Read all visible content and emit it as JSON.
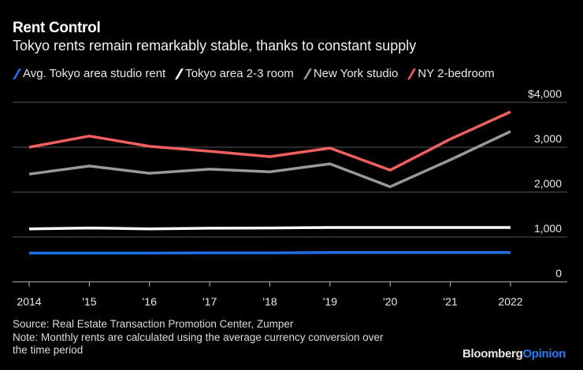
{
  "chart_data": {
    "type": "line",
    "title": "Rent Control",
    "subtitle": "Tokyo rents remain remarkably stable, thanks to constant supply",
    "xlabel": "",
    "ylabel": "",
    "x": [
      2014,
      2015,
      2016,
      2017,
      2018,
      2019,
      2020,
      2021,
      2022
    ],
    "x_tick_labels": [
      "2014",
      "'15",
      "'16",
      "'17",
      "'18",
      "'19",
      "'20",
      "'21",
      "2022"
    ],
    "ylim": [
      0,
      4000
    ],
    "y_ticks": [
      0,
      1000,
      2000,
      3000,
      4000
    ],
    "y_tick_labels": [
      "0",
      "1,000",
      "2,000",
      "3,000",
      "$4,000"
    ],
    "y_axis_position": "right",
    "grid": true,
    "legend_position": "top-left",
    "series": [
      {
        "name": "Avg. Tokyo area studio rent",
        "color": "#1f6fe5",
        "values": [
          640,
          640,
          640,
          645,
          645,
          655,
          655,
          655,
          655
        ]
      },
      {
        "name": "Tokyo area 2-3 room",
        "color": "#ffffff",
        "values": [
          1180,
          1200,
          1180,
          1195,
          1200,
          1210,
          1210,
          1210,
          1210
        ]
      },
      {
        "name": "New York studio",
        "color": "#999999",
        "values": [
          2400,
          2580,
          2420,
          2510,
          2450,
          2630,
          2120,
          2720,
          3350
        ]
      },
      {
        "name": "NY 2-bedroom",
        "color": "#f25f5f",
        "values": [
          3000,
          3250,
          3020,
          2910,
          2790,
          2980,
          2490,
          3180,
          3790
        ]
      }
    ]
  },
  "footer": {
    "source": "Source: Real Estate Transaction Promotion Center, Zumper",
    "note_line1": "Note: Monthly rents are calculated using the average currency conversion over",
    "note_line2": "the time period"
  },
  "brand": {
    "part1": "Bloomberg",
    "part2": "Opinion"
  }
}
